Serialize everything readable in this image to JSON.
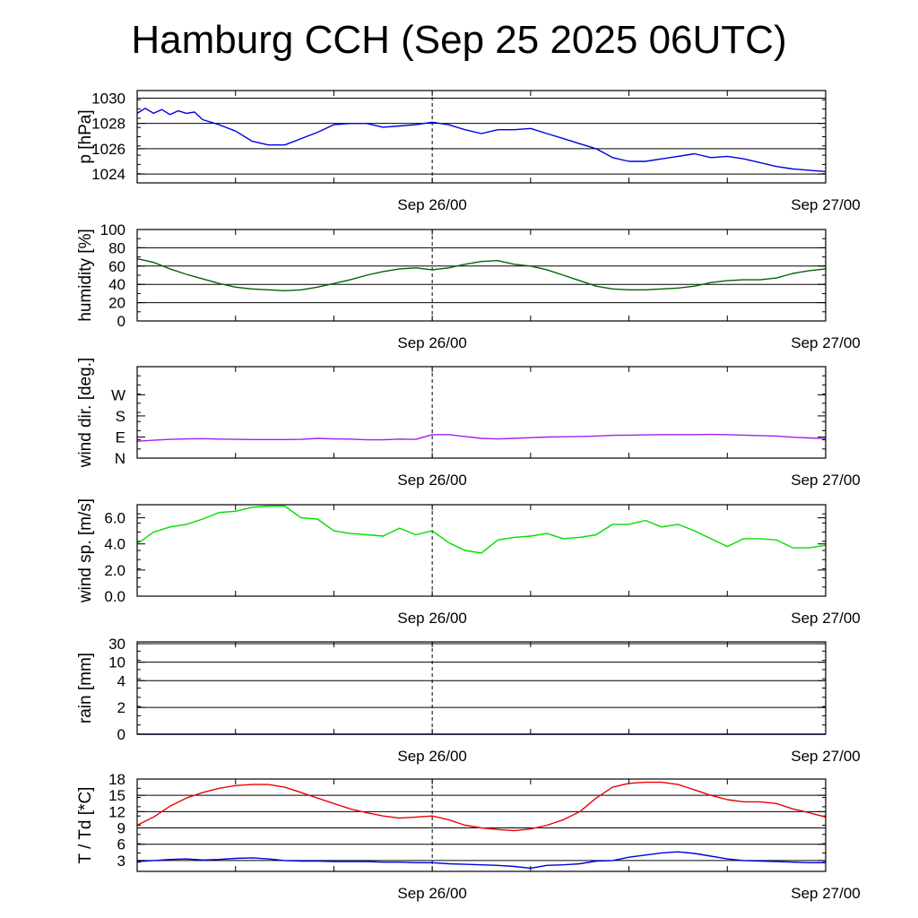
{
  "title": "Hamburg CCH (Sep 25 2025 06UTC)",
  "chart_data": [
    {
      "type": "line",
      "ylabel": "p [hPa]",
      "ylim": [
        1023.3,
        1030.6
      ],
      "yticks": [
        "1024",
        "1026",
        "1028",
        "1030"
      ],
      "ytick_values": [
        1024,
        1026,
        1028,
        1030
      ],
      "grid": true,
      "xlim": [
        0,
        42
      ],
      "xtick_labels": [
        {
          "x": 18,
          "label": "Sep 26/00"
        },
        {
          "x": 42,
          "label": "Sep 27/00"
        }
      ],
      "series": [
        {
          "color": "#0000dd",
          "x": [
            0,
            0.5,
            1,
            1.5,
            2,
            2.5,
            3,
            3.5,
            4,
            5,
            6,
            7,
            8,
            9,
            10,
            11,
            12,
            13,
            14,
            15,
            16,
            17,
            18,
            19,
            20,
            21,
            22,
            23,
            24,
            25,
            26,
            27,
            28,
            29,
            30,
            31,
            32,
            33,
            34,
            35,
            36,
            37,
            38,
            39,
            40,
            41,
            42
          ],
          "y": [
            1028.8,
            1029.2,
            1028.8,
            1029.1,
            1028.7,
            1029.0,
            1028.8,
            1028.9,
            1028.3,
            1027.9,
            1027.4,
            1026.6,
            1026.3,
            1026.3,
            1026.8,
            1027.3,
            1027.9,
            1028.0,
            1028.0,
            1027.7,
            1027.8,
            1027.9,
            1028.1,
            1027.9,
            1027.5,
            1027.2,
            1027.5,
            1027.5,
            1027.6,
            1027.2,
            1026.8,
            1026.4,
            1026.0,
            1025.3,
            1025.0,
            1025.0,
            1025.2,
            1025.4,
            1025.6,
            1025.3,
            1025.4,
            1025.2,
            1024.9,
            1024.6,
            1024.4,
            1024.3,
            1024.2
          ]
        }
      ]
    },
    {
      "type": "line",
      "ylabel": "humidity [%]",
      "ylim": [
        0,
        100
      ],
      "yticks": [
        "0",
        "20",
        "40",
        "60",
        "80",
        "100"
      ],
      "ytick_values": [
        0,
        20,
        40,
        60,
        80,
        100
      ],
      "grid": true,
      "xlim": [
        0,
        42
      ],
      "xtick_labels": [
        {
          "x": 18,
          "label": "Sep 26/00"
        },
        {
          "x": 42,
          "label": "Sep 27/00"
        }
      ],
      "series": [
        {
          "color": "#006400",
          "x": [
            0,
            1,
            2,
            3,
            4,
            5,
            6,
            7,
            8,
            9,
            10,
            11,
            12,
            13,
            14,
            15,
            16,
            17,
            18,
            19,
            20,
            21,
            22,
            23,
            24,
            25,
            26,
            27,
            28,
            29,
            30,
            31,
            32,
            33,
            34,
            35,
            36,
            37,
            38,
            39,
            40,
            41,
            42
          ],
          "y": [
            68,
            64,
            57,
            51,
            46,
            41,
            37,
            35,
            34,
            33,
            34,
            37,
            41,
            45,
            50,
            54,
            57,
            58,
            56,
            58,
            62,
            65,
            66,
            62,
            60,
            56,
            50,
            44,
            38,
            35,
            34,
            34,
            35,
            36,
            38,
            42,
            44,
            45,
            45,
            47,
            52,
            55,
            57
          ]
        }
      ]
    },
    {
      "type": "line",
      "ylabel": "wind dir. [deg.]",
      "ylim": [
        0,
        390
      ],
      "yticks": [
        "N",
        "E",
        "S",
        "W"
      ],
      "ytick_values": [
        0,
        90,
        180,
        270
      ],
      "grid": false,
      "xlim": [
        0,
        42
      ],
      "xtick_labels": [
        {
          "x": 18,
          "label": "Sep 26/00"
        },
        {
          "x": 42,
          "label": "Sep 27/00"
        }
      ],
      "series": [
        {
          "color": "#a020f0",
          "x": [
            0,
            1,
            2,
            3,
            4,
            5,
            6,
            7,
            8,
            9,
            10,
            11,
            12,
            13,
            14,
            15,
            16,
            17,
            18,
            19,
            20,
            21,
            22,
            23,
            24,
            25,
            26,
            27,
            28,
            29,
            30,
            31,
            32,
            33,
            34,
            35,
            36,
            37,
            38,
            39,
            40,
            41,
            42
          ],
          "y": [
            72,
            76,
            80,
            82,
            83,
            81,
            80,
            79,
            79,
            79,
            80,
            84,
            82,
            81,
            78,
            78,
            81,
            80,
            100,
            100,
            92,
            84,
            82,
            84,
            87,
            90,
            91,
            92,
            94,
            97,
            98,
            99,
            100,
            100,
            100,
            101,
            100,
            98,
            96,
            94,
            89,
            86,
            83
          ]
        }
      ]
    },
    {
      "type": "line",
      "ylabel": "wind sp. [m/s]",
      "ylim": [
        0,
        7.0
      ],
      "yticks": [
        "0.0",
        "2.0",
        "4.0",
        "6.0"
      ],
      "ytick_values": [
        0,
        2,
        4,
        6
      ],
      "grid": false,
      "xlim": [
        0,
        42
      ],
      "xtick_labels": [
        {
          "x": 18,
          "label": "Sep 26/00"
        },
        {
          "x": 42,
          "label": "Sep 27/00"
        }
      ],
      "series": [
        {
          "color": "#00dd00",
          "x": [
            0,
            1,
            2,
            3,
            4,
            5,
            6,
            7,
            8,
            9,
            10,
            11,
            12,
            13,
            14,
            15,
            16,
            17,
            18,
            19,
            20,
            21,
            22,
            23,
            24,
            25,
            26,
            27,
            28,
            29,
            30,
            31,
            32,
            33,
            34,
            35,
            36,
            37,
            38,
            39,
            40,
            41,
            42
          ],
          "y": [
            4.0,
            4.9,
            5.3,
            5.5,
            5.9,
            6.4,
            6.5,
            6.8,
            6.9,
            6.9,
            6.0,
            5.9,
            5.0,
            4.8,
            4.7,
            4.6,
            5.2,
            4.7,
            5.0,
            4.1,
            3.5,
            3.3,
            4.3,
            4.5,
            4.6,
            4.8,
            4.4,
            4.5,
            4.7,
            5.5,
            5.5,
            5.8,
            5.3,
            5.5,
            5.0,
            4.4,
            3.8,
            4.4,
            4.4,
            4.3,
            3.7,
            3.7,
            3.9
          ]
        }
      ]
    },
    {
      "type": "line",
      "ylabel": "rain [mm]",
      "ylim": [
        0,
        35
      ],
      "yticks": [
        "0",
        "2",
        "4",
        "10",
        "30"
      ],
      "ytick_values": [
        0,
        2,
        4,
        10,
        30
      ],
      "yscale": "nonlinear",
      "grid": true,
      "xlim": [
        0,
        42
      ],
      "xtick_labels": [
        {
          "x": 18,
          "label": "Sep 26/00"
        },
        {
          "x": 42,
          "label": "Sep 27/00"
        }
      ],
      "series": [
        {
          "color": "#0000aa",
          "x": [
            0,
            42
          ],
          "y": [
            0,
            0
          ]
        }
      ]
    },
    {
      "type": "line",
      "ylabel": "T / Td [*C]",
      "ylim": [
        1,
        18
      ],
      "yticks": [
        "3",
        "6",
        "9",
        "12",
        "15",
        "18"
      ],
      "ytick_values": [
        3,
        6,
        9,
        12,
        15,
        18
      ],
      "grid": true,
      "xlim": [
        0,
        42
      ],
      "xtick_labels": [
        {
          "x": 18,
          "label": "Sep 26/00"
        },
        {
          "x": 42,
          "label": "Sep 27/00"
        }
      ],
      "series": [
        {
          "color": "#ee0000",
          "x": [
            0,
            1,
            2,
            3,
            4,
            5,
            6,
            7,
            8,
            9,
            10,
            11,
            12,
            13,
            14,
            15,
            16,
            17,
            18,
            19,
            20,
            21,
            22,
            23,
            24,
            25,
            26,
            27,
            28,
            29,
            30,
            31,
            32,
            33,
            34,
            35,
            36,
            37,
            38,
            39,
            40,
            41,
            42
          ],
          "y": [
            9.5,
            11.0,
            13.0,
            14.5,
            15.5,
            16.3,
            16.8,
            17.0,
            17.0,
            16.5,
            15.5,
            14.5,
            13.5,
            12.5,
            11.8,
            11.2,
            10.8,
            11.0,
            11.2,
            10.5,
            9.5,
            9.0,
            8.7,
            8.5,
            8.8,
            9.5,
            10.5,
            12.0,
            14.5,
            16.5,
            17.2,
            17.4,
            17.4,
            17.0,
            16.0,
            15.0,
            14.2,
            13.8,
            13.8,
            13.5,
            12.5,
            11.8,
            11.0
          ]
        },
        {
          "color": "#0000dd",
          "x": [
            0,
            1,
            2,
            3,
            4,
            5,
            6,
            7,
            8,
            9,
            10,
            11,
            12,
            13,
            14,
            15,
            16,
            17,
            18,
            19,
            20,
            21,
            22,
            23,
            24,
            25,
            26,
            27,
            28,
            29,
            30,
            31,
            32,
            33,
            34,
            35,
            36,
            37,
            38,
            39,
            40,
            41,
            42
          ],
          "y": [
            2.8,
            3.0,
            3.2,
            3.3,
            3.1,
            3.2,
            3.4,
            3.5,
            3.3,
            3.0,
            2.9,
            2.9,
            2.8,
            2.8,
            2.8,
            2.7,
            2.7,
            2.6,
            2.6,
            2.4,
            2.3,
            2.2,
            2.1,
            1.9,
            1.6,
            2.1,
            2.2,
            2.4,
            2.9,
            3.0,
            3.6,
            4.0,
            4.4,
            4.6,
            4.3,
            3.8,
            3.3,
            3.0,
            2.9,
            2.8,
            2.7,
            2.6,
            2.6
          ]
        }
      ]
    }
  ]
}
